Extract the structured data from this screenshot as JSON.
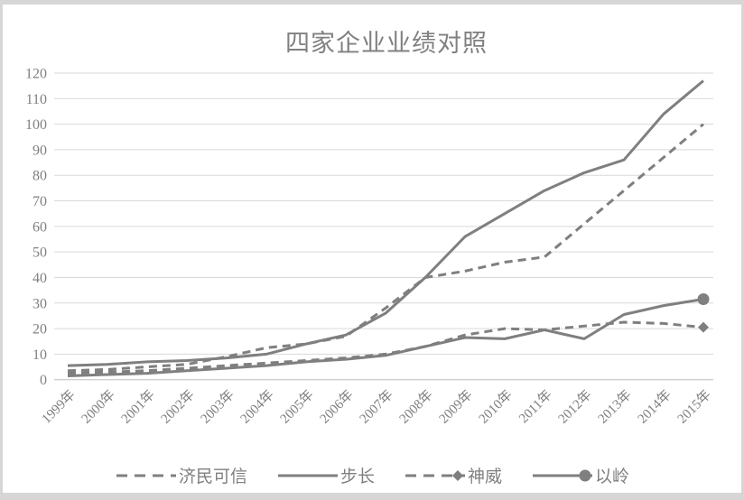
{
  "palette": {
    "line": "#7f7f7f",
    "grid": "#d9d9d9",
    "axis": "#bfbfbf",
    "text": "#7f7f7f",
    "title_text": "#808080",
    "background": "#ffffff",
    "surround": "#d6d6d6"
  },
  "chart_data": {
    "type": "line",
    "title": "四家企业业绩对照",
    "categories": [
      "1999年",
      "2000年",
      "2001年",
      "2002年",
      "2003年",
      "2004年",
      "2005年",
      "2006年",
      "2007年",
      "2008年",
      "2009年",
      "2010年",
      "2011年",
      "2012年",
      "2013年",
      "2014年",
      "2015年"
    ],
    "xlabel": "",
    "ylabel": "",
    "ylim": [
      0,
      120
    ],
    "ytick_step": 10,
    "grid": true,
    "legend_position": "bottom",
    "series": [
      {
        "key": "jiminkexin",
        "name": "济民可信",
        "style": "dashed",
        "end_marker": "none",
        "values": [
          3.5,
          4,
          5,
          6,
          9,
          12.5,
          14,
          17,
          28,
          40,
          42.5,
          46,
          48,
          61,
          74,
          87,
          100
        ]
      },
      {
        "key": "buchang",
        "name": "步长",
        "style": "solid",
        "end_marker": "none",
        "values": [
          5.5,
          6,
          7,
          7.5,
          8.5,
          10,
          14,
          17.5,
          26,
          40,
          56,
          65,
          74,
          81,
          86,
          104,
          117
        ]
      },
      {
        "key": "shenwei",
        "name": "神威",
        "style": "dashed",
        "end_marker": "diamond",
        "values": [
          2.5,
          3,
          3.5,
          4.5,
          5.5,
          6.5,
          7.5,
          8.5,
          10,
          13,
          17.5,
          20,
          19.5,
          21,
          22.5,
          22,
          20.5
        ]
      },
      {
        "key": "yiling",
        "name": "以岭",
        "style": "solid",
        "end_marker": "circle",
        "values": [
          1.5,
          2,
          2.5,
          3.5,
          4.5,
          5.5,
          7,
          8,
          9.5,
          13,
          16.5,
          16,
          19.5,
          16,
          25.5,
          29,
          31.5
        ]
      }
    ]
  }
}
